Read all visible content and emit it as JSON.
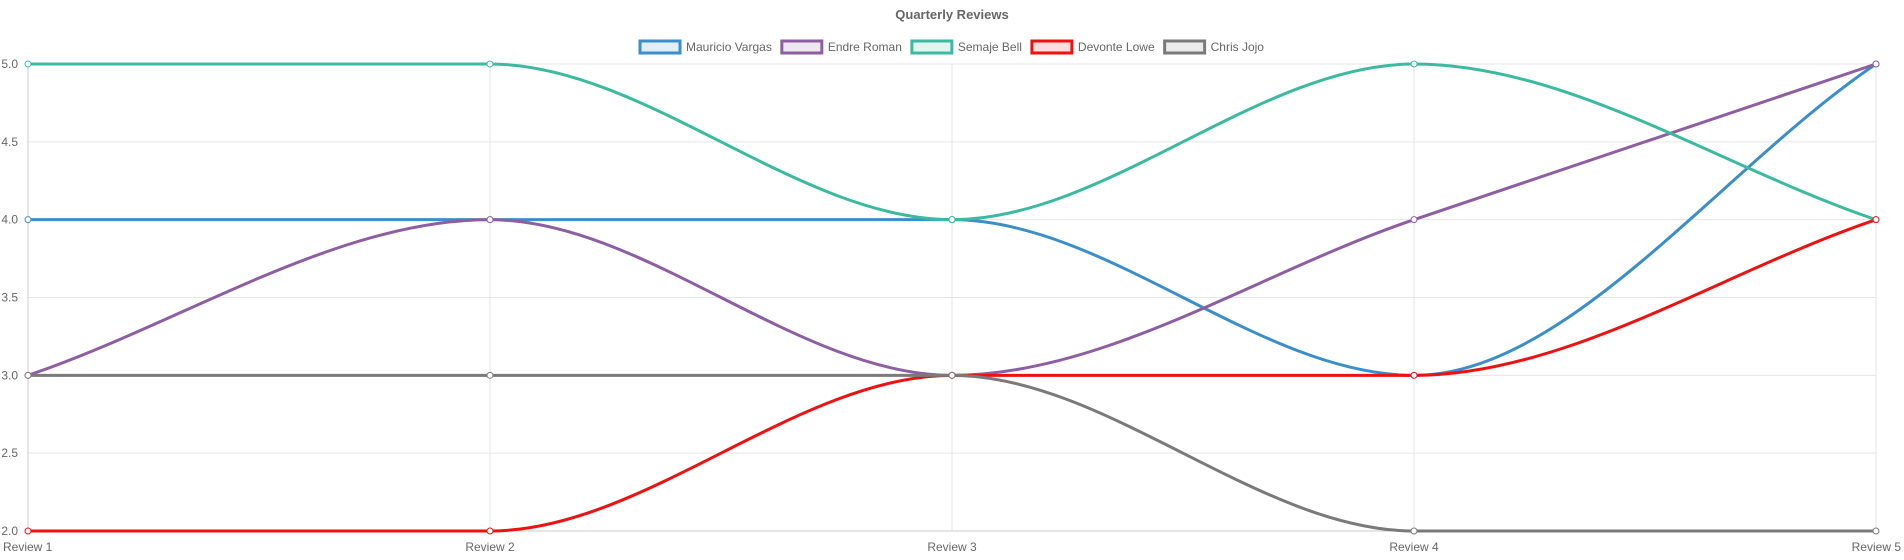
{
  "chart_data": {
    "type": "line",
    "title": "Quarterly Reviews",
    "categories": [
      "Review 1",
      "Review 2",
      "Review 3",
      "Review 4",
      "Review 5"
    ],
    "ylim": [
      2.0,
      5.0
    ],
    "yticks": [
      2.0,
      2.5,
      3.0,
      3.5,
      4.0,
      4.5,
      5.0
    ],
    "grid": true,
    "legend_position": "top",
    "series": [
      {
        "name": "Mauricio Vargas",
        "color": "#3a8ec9",
        "values": [
          4,
          4,
          4,
          3,
          5
        ]
      },
      {
        "name": "Endre Roman",
        "color": "#8e5ea2",
        "values": [
          3,
          4,
          3,
          4,
          5
        ]
      },
      {
        "name": "Semaje Bell",
        "color": "#3cba9f",
        "values": [
          5,
          5,
          4,
          5,
          4
        ]
      },
      {
        "name": "Devonte Lowe",
        "color": "#ee1111",
        "values": [
          2,
          2,
          3,
          3,
          4
        ]
      },
      {
        "name": "Chris Jojo",
        "color": "#7a7a7a",
        "values": [
          3,
          3,
          3,
          2,
          2
        ]
      }
    ]
  }
}
